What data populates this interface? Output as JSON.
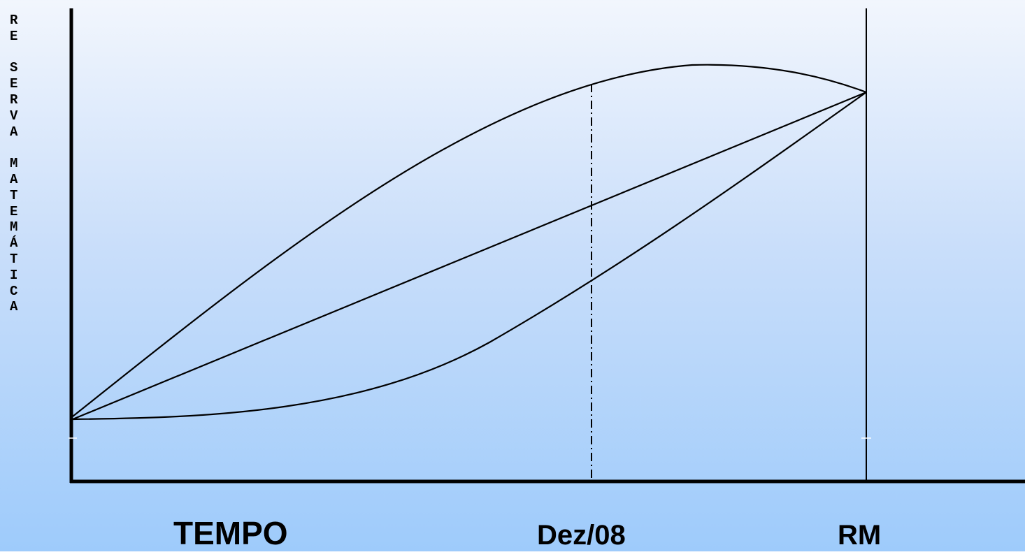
{
  "diagram": {
    "y_axis_label": "R\nE\n\nS\nE\nR\nV\nA\n\nM\nA\nT\nE\nM\nÁ\nT\nI\nC\nA",
    "x_axis_label": "TEMPO",
    "marker_labels": {
      "dez08": "Dez/08",
      "rm": "RM"
    },
    "line_color": "#000000",
    "background_gradient": [
      "#f2f6fd",
      "#9ecbfb"
    ]
  }
}
